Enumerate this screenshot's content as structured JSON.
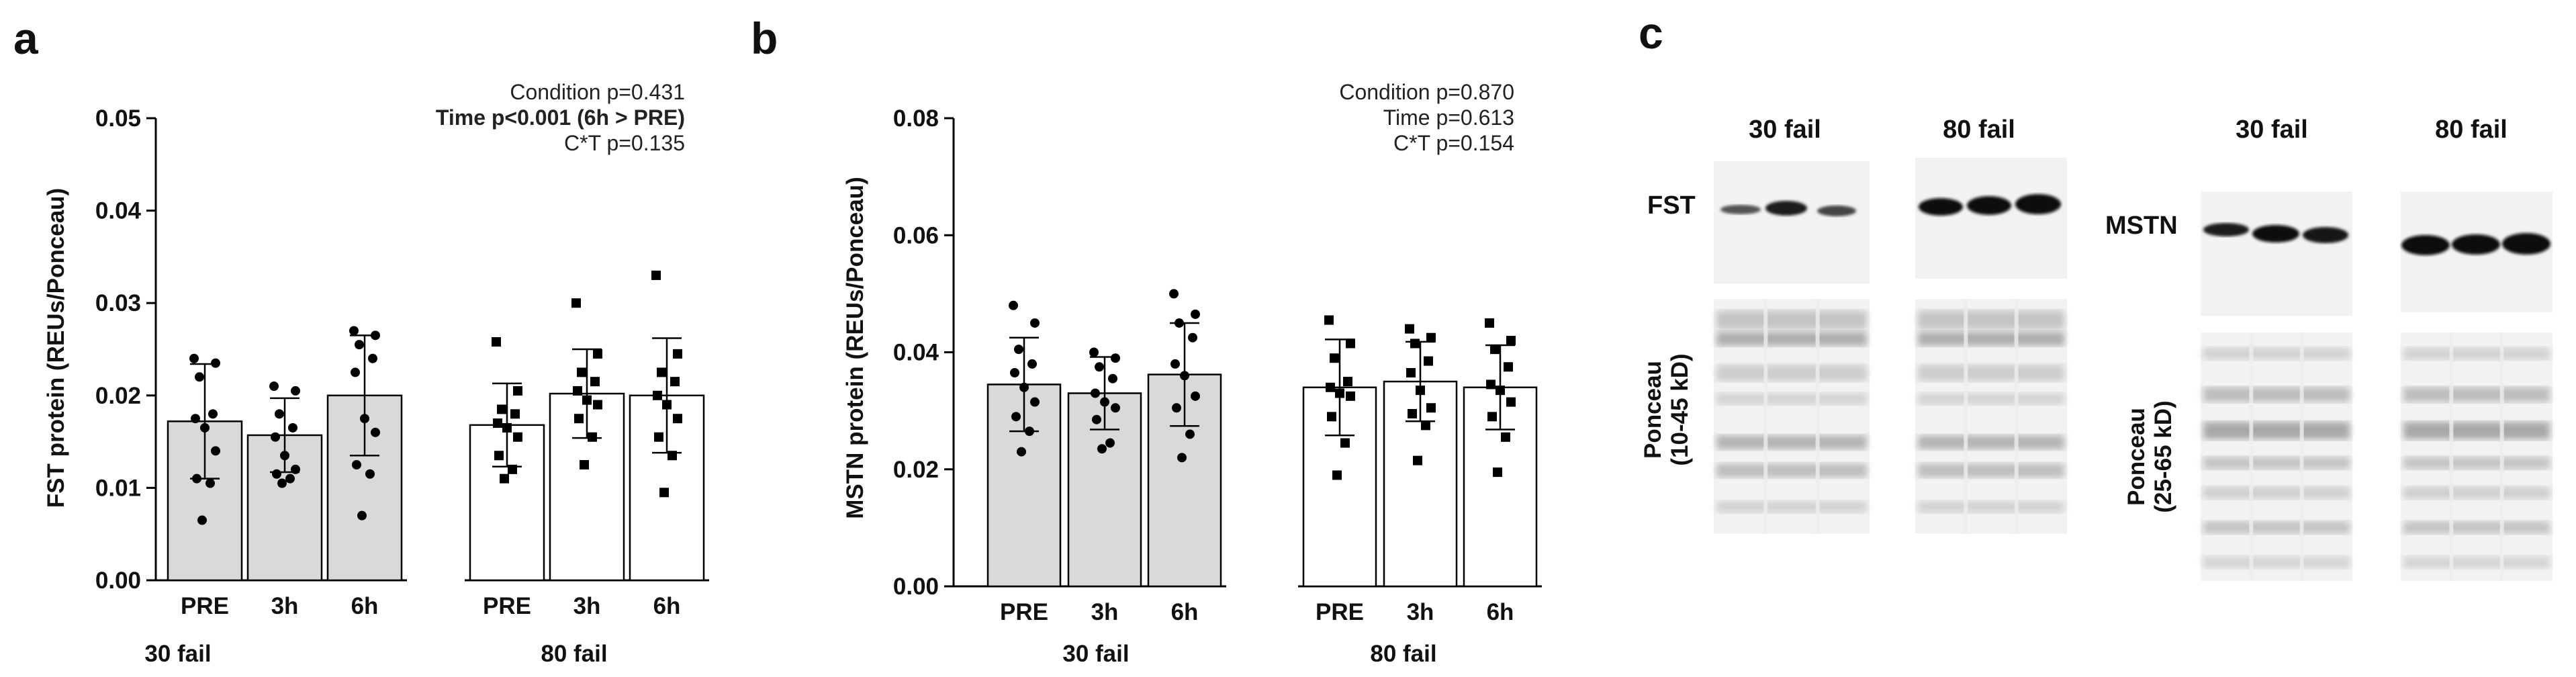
{
  "chart_data": [
    {
      "type": "bar",
      "panel_label": "a",
      "ylabel": "FST protein (REUs/Ponceau)",
      "ylim": [
        0,
        0.05
      ],
      "yticks": [
        "0.00",
        "0.01",
        "0.02",
        "0.03",
        "0.04",
        "0.05"
      ],
      "annotations": [
        "Condition p=0.431",
        "Time p<0.001 (6h > PRE)",
        "C*T p=0.135"
      ],
      "groups": [
        {
          "name": "30 fail",
          "fill": "#d9d9d9",
          "marker": "circle",
          "bars": [
            {
              "label": "PRE",
              "mean": 0.0172,
              "sd": 0.0062,
              "points": [
                0.024,
                0.0235,
                0.022,
                0.018,
                0.0175,
                0.0165,
                0.014,
                0.011,
                0.0105,
                0.0065
              ]
            },
            {
              "label": "3h",
              "mean": 0.0157,
              "sd": 0.004,
              "points": [
                0.021,
                0.0205,
                0.018,
                0.0165,
                0.0155,
                0.0135,
                0.012,
                0.0115,
                0.011,
                0.0105
              ]
            },
            {
              "label": "6h",
              "mean": 0.02,
              "sd": 0.0065,
              "points": [
                0.027,
                0.0265,
                0.0255,
                0.024,
                0.0225,
                0.0175,
                0.016,
                0.0125,
                0.0115,
                0.007
              ]
            }
          ]
        },
        {
          "name": "80 fail",
          "fill": "#ffffff",
          "marker": "square",
          "bars": [
            {
              "label": "PRE",
              "mean": 0.0168,
              "sd": 0.0045,
              "points": [
                0.0258,
                0.0205,
                0.0185,
                0.018,
                0.017,
                0.0165,
                0.0155,
                0.0135,
                0.012,
                0.011
              ]
            },
            {
              "label": "3h",
              "mean": 0.0202,
              "sd": 0.0048,
              "points": [
                0.03,
                0.0245,
                0.0225,
                0.0215,
                0.0205,
                0.0195,
                0.019,
                0.0175,
                0.0155,
                0.0125
              ]
            },
            {
              "label": "6h",
              "mean": 0.02,
              "sd": 0.0062,
              "points": [
                0.033,
                0.0245,
                0.0225,
                0.0215,
                0.02,
                0.019,
                0.0175,
                0.0155,
                0.0135,
                0.0095
              ]
            }
          ]
        }
      ]
    },
    {
      "type": "bar",
      "panel_label": "b",
      "ylabel": "MSTN protein (REUs/Ponceau)",
      "ylim": [
        0,
        0.08
      ],
      "yticks": [
        "0.00",
        "0.02",
        "0.04",
        "0.06",
        "0.08"
      ],
      "annotations": [
        "Condition p=0.870",
        "Time p=0.613",
        "C*T p=0.154"
      ],
      "groups": [
        {
          "name": "30 fail",
          "fill": "#d9d9d9",
          "marker": "circle",
          "bars": [
            {
              "label": "PRE",
              "mean": 0.0345,
              "sd": 0.008,
              "points": [
                0.048,
                0.045,
                0.0405,
                0.038,
                0.0365,
                0.034,
                0.0315,
                0.029,
                0.0265,
                0.023
              ]
            },
            {
              "label": "3h",
              "mean": 0.033,
              "sd": 0.0062,
              "points": [
                0.04,
                0.039,
                0.0375,
                0.0355,
                0.033,
                0.0315,
                0.0305,
                0.0285,
                0.0245,
                0.0235
              ]
            },
            {
              "label": "6h",
              "mean": 0.0362,
              "sd": 0.0088,
              "points": [
                0.05,
                0.0465,
                0.045,
                0.0425,
                0.038,
                0.036,
                0.0325,
                0.0305,
                0.026,
                0.022
              ]
            }
          ]
        },
        {
          "name": "80 fail",
          "fill": "#ffffff",
          "marker": "square",
          "bars": [
            {
              "label": "PRE",
              "mean": 0.034,
              "sd": 0.0082,
              "points": [
                0.0455,
                0.0415,
                0.039,
                0.035,
                0.034,
                0.033,
                0.0325,
                0.029,
                0.0245,
                0.019
              ]
            },
            {
              "label": "3h",
              "mean": 0.035,
              "sd": 0.0068,
              "points": [
                0.044,
                0.0425,
                0.0415,
                0.0385,
                0.0365,
                0.0335,
                0.0305,
                0.0295,
                0.0275,
                0.0215
              ]
            },
            {
              "label": "6h",
              "mean": 0.034,
              "sd": 0.0072,
              "points": [
                0.045,
                0.042,
                0.0405,
                0.0375,
                0.0345,
                0.0335,
                0.0315,
                0.029,
                0.0255,
                0.0195
              ]
            }
          ]
        }
      ]
    }
  ],
  "blots": {
    "panel_label": "c",
    "left": {
      "group_labels": [
        "30 fail",
        "80 fail"
      ],
      "protein_label": "FST",
      "ponceau_label": [
        "Ponceau",
        "(10-45 kD)"
      ]
    },
    "right": {
      "group_labels": [
        "30 fail",
        "80 fail"
      ],
      "protein_label": "MSTN",
      "ponceau_label": [
        "Ponceau",
        "(25-65 kD)"
      ]
    }
  }
}
